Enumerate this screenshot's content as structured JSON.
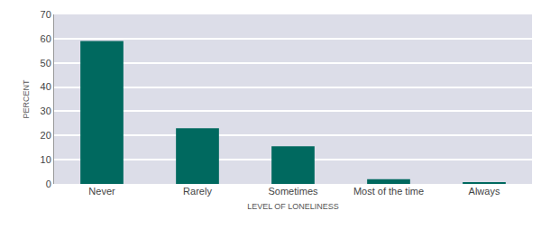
{
  "chart_data": {
    "type": "bar",
    "categories": [
      "Never",
      "Rarely",
      "Sometimes",
      "Most of the time",
      "Always"
    ],
    "values": [
      59,
      23,
      15.5,
      2,
      0.7
    ],
    "color": "#00695f",
    "xlabel": "LEVEL OF LONELINESS",
    "ylabel": "PERCENT",
    "ylim": [
      0,
      70
    ],
    "yticks": [
      0,
      10,
      20,
      30,
      40,
      50,
      60,
      70
    ],
    "grid": true
  }
}
